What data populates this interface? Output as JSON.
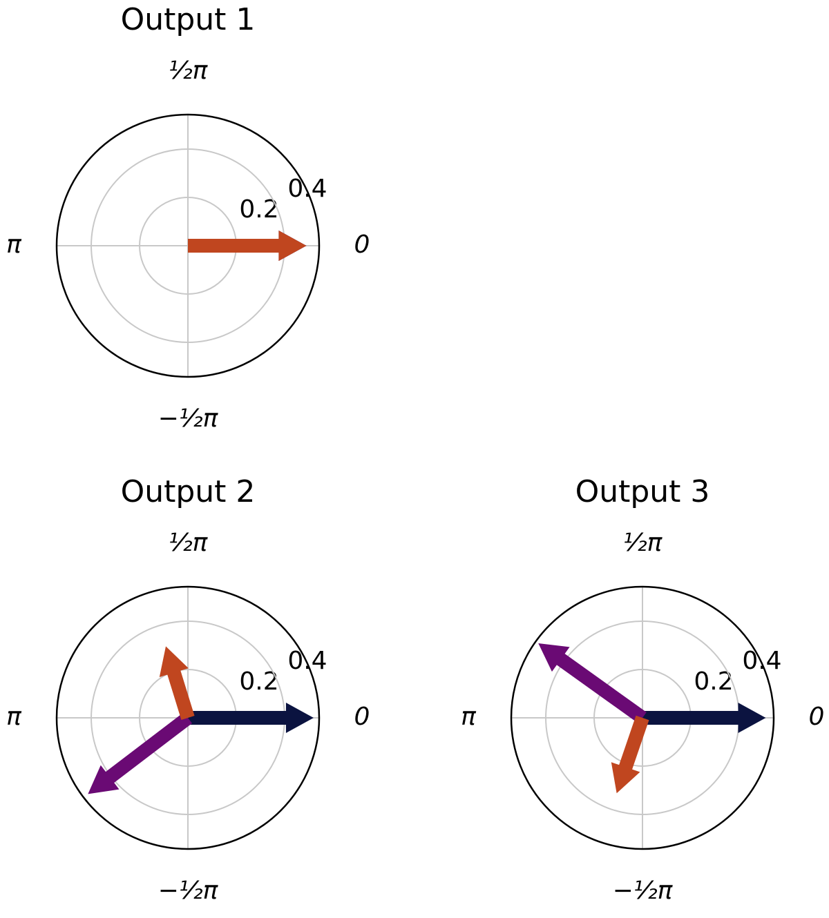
{
  "chart_data": [
    {
      "type": "polar-quiver",
      "title": "Output 1",
      "rlim": [
        0,
        0.543
      ],
      "rticks": [
        0.2,
        0.4
      ],
      "thetaticks": [
        {
          "value": 0,
          "label": "0"
        },
        {
          "value": 1.5708,
          "label": "½π"
        },
        {
          "value": 3.1416,
          "label": "π"
        },
        {
          "value": -1.5708,
          "label": "−½π"
        }
      ],
      "series": [
        {
          "color": "#0b1340",
          "theta": [
            0
          ],
          "values": [
            0.49
          ]
        },
        {
          "color": "#6a0a74",
          "theta": [
            0
          ],
          "values": [
            0.49
          ]
        },
        {
          "color": "#c0461f",
          "theta": [
            0
          ],
          "values": [
            0.49
          ]
        }
      ]
    },
    {
      "type": "polar-quiver",
      "title": "Output 2",
      "rlim": [
        0,
        0.543
      ],
      "rticks": [
        0.2,
        0.4
      ],
      "thetaticks": [
        {
          "value": 0,
          "label": "0"
        },
        {
          "value": 1.5708,
          "label": "½π"
        },
        {
          "value": 3.1416,
          "label": "π"
        },
        {
          "value": -1.5708,
          "label": "−½π"
        }
      ],
      "series": [
        {
          "color": "#0b1340",
          "theta": [
            0
          ],
          "values": [
            0.52
          ]
        },
        {
          "color": "#6a0a74",
          "theta": [
            -2.49
          ],
          "values": [
            0.52
          ]
        },
        {
          "color": "#c0461f",
          "theta": [
            1.87
          ],
          "values": [
            0.31
          ]
        }
      ]
    },
    {
      "type": "polar-quiver",
      "title": "Output 3",
      "rlim": [
        0,
        0.543
      ],
      "rticks": [
        0.2,
        0.4
      ],
      "thetaticks": [
        {
          "value": 0,
          "label": "0"
        },
        {
          "value": 1.5708,
          "label": "½π"
        },
        {
          "value": 3.1416,
          "label": "π"
        },
        {
          "value": -1.5708,
          "label": "−½π"
        }
      ],
      "series": [
        {
          "color": "#0b1340",
          "theta": [
            0
          ],
          "values": [
            0.51
          ]
        },
        {
          "color": "#6a0a74",
          "theta": [
            2.52
          ],
          "values": [
            0.53
          ]
        },
        {
          "color": "#c0461f",
          "theta": [
            -1.9
          ],
          "values": [
            0.33
          ]
        }
      ]
    }
  ]
}
